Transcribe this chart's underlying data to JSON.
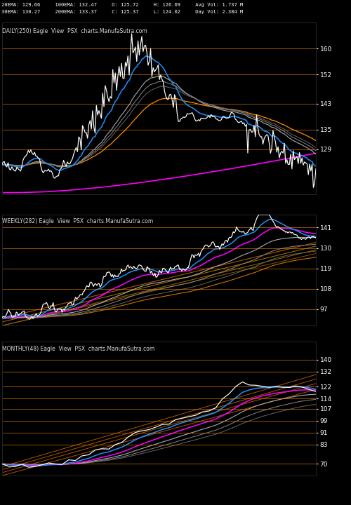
{
  "background_color": "#000000",
  "panel1": {
    "title": "DAILY(250) Eagle  View  PSX  charts.ManufaSutra.com",
    "y_ticks": [
      129,
      135,
      143,
      152,
      160
    ],
    "y_min": 115,
    "y_max": 168,
    "header_line1": "20EMA: 129.66     100EMA: 132.47     O: 125.72     H: 126.69     Avg Vol: 1.737 M",
    "header_line2": "30EMA: 130.27     200EMA: 133.37     C: 125.37     L: 124.02     Day Vol: 2.384 M"
  },
  "panel2": {
    "title": "WEEKLY(282) Eagle  View  PSX  charts.ManufaSutra.com",
    "y_ticks": [
      97,
      108,
      119,
      130,
      141
    ],
    "y_min": 88,
    "y_max": 148
  },
  "panel3": {
    "title": "MONTHLY(48) Eagle  View  PSX  charts.ManufaSutra.com",
    "y_ticks": [
      70,
      83,
      91,
      99,
      107,
      114,
      122,
      132,
      140
    ],
    "y_min": 62,
    "y_max": 152
  },
  "colors": {
    "white": "#ffffff",
    "blue": "#1e90ff",
    "magenta": "#ff00ff",
    "gray1": "#aaaaaa",
    "gray2": "#888888",
    "gray3": "#666666",
    "orange": "#ff8c00",
    "orange2": "#cc7000",
    "orange3": "#aa5500"
  }
}
